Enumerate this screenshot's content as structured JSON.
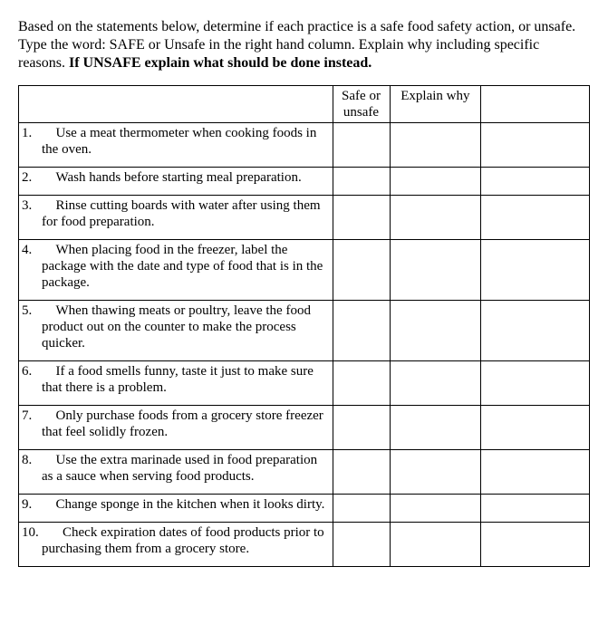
{
  "instructions": {
    "part1": "Based on the statements below, determine if each practice is a safe food safety action, or unsafe. Type the word: SAFE or Unsafe in the right hand column. Explain why including specific reasons. ",
    "bold_part": "If UNSAFE explain what should be done instead."
  },
  "headers": {
    "statement": "",
    "safe_or_unsafe": "Safe or unsafe",
    "explain": "Explain why",
    "blank": ""
  },
  "rows": [
    {
      "num": "1.",
      "text": "Use a meat thermometer when cooking foods in the oven."
    },
    {
      "num": "2.",
      "text": "Wash hands before starting meal preparation."
    },
    {
      "num": "3.",
      "text": "Rinse cutting boards with water after using them for food preparation."
    },
    {
      "num": "4.",
      "text": "When placing food in the freezer, label the package with the date and type of food that is in the package."
    },
    {
      "num": "5.",
      "text": "When thawing meats or poultry, leave the food product out on the counter to make the process quicker."
    },
    {
      "num": "6.",
      "text": "If a food smells funny, taste it just to make sure that there is a problem."
    },
    {
      "num": "7.",
      "text": "Only purchase foods from a grocery store freezer that feel solidly frozen."
    },
    {
      "num": "8.",
      "text": "Use the extra marinade used in food preparation as a sauce when serving food products."
    },
    {
      "num": "9.",
      "text": "Change sponge in the kitchen when it looks dirty."
    },
    {
      "num": "10.",
      "text": "Check expiration dates of food products prior to purchasing them from a grocery store."
    }
  ]
}
